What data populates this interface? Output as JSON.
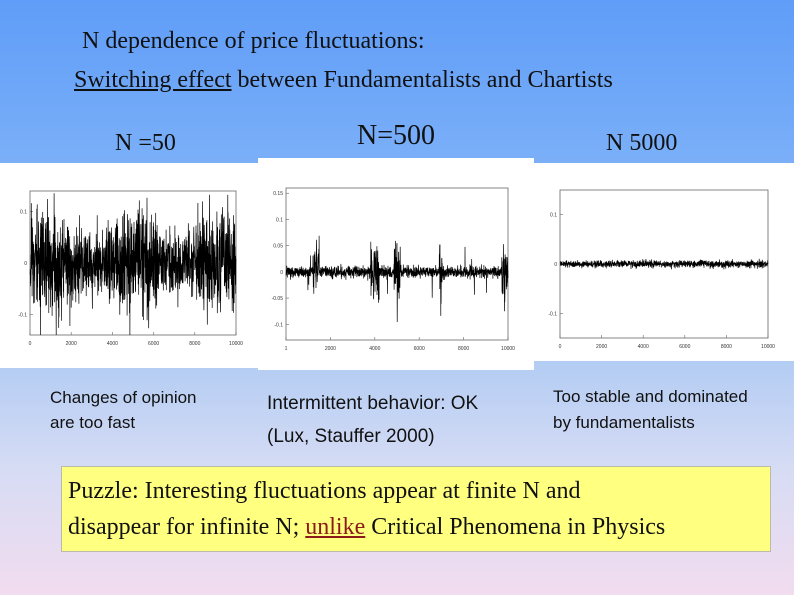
{
  "title": {
    "line1": "N dependence of price fluctuations:",
    "line2_underlined": "Switching effect",
    "line2_rest": " between Fundamentalists and Chartists"
  },
  "panels": [
    {
      "label": "N =50",
      "caption_lines": [
        "Changes of opinion",
        "are too fast"
      ],
      "chart": {
        "type": "line",
        "x_ticks": [
          "0",
          "2000",
          "4000",
          "6000",
          "8000",
          "10000"
        ],
        "y_ticks": [
          "0.1",
          "0",
          "-0.1"
        ],
        "xlim": [
          0,
          10000
        ],
        "ylim": [
          -0.14,
          0.14
        ],
        "amplitude": 0.11,
        "burst_level": 0.11
      }
    },
    {
      "label": "N=500",
      "caption_lines": [
        "Intermittent behavior: OK",
        "(Lux, Stauffer 2000)"
      ],
      "chart": {
        "type": "line",
        "x_ticks": [
          "1",
          "2000",
          "4000",
          "6000",
          "8000",
          "10000"
        ],
        "y_ticks": [
          "0.15",
          "0.1",
          "0.05",
          "0",
          "-0.05",
          "-0.1"
        ],
        "xlim": [
          0,
          10000
        ],
        "ylim": [
          -0.13,
          0.16
        ],
        "amplitude": 0.012,
        "burst_level": 0.09
      }
    },
    {
      "label": "N 5000",
      "caption_lines": [
        "Too stable and dominated",
        "by fundamentalists"
      ],
      "chart": {
        "type": "line",
        "x_ticks": [
          "0",
          "2000",
          "4000",
          "6000",
          "8000",
          "10000"
        ],
        "y_ticks": [
          "0.1",
          "0",
          "-0.1"
        ],
        "xlim": [
          0,
          10000
        ],
        "ylim": [
          -0.15,
          0.15
        ],
        "amplitude": 0.008,
        "burst_level": 0.008
      }
    }
  ],
  "puzzle": {
    "line1": "Puzzle: Interesting fluctuations appear at finite N and",
    "line2_before": "disappear for infinite N; ",
    "line2_link": "unlike",
    "line2_after": " Critical Phenomena in Physics"
  },
  "colors": {
    "puzzle_bg": "#ffff80",
    "link": "#8b1a1a",
    "trace": "#000000"
  }
}
